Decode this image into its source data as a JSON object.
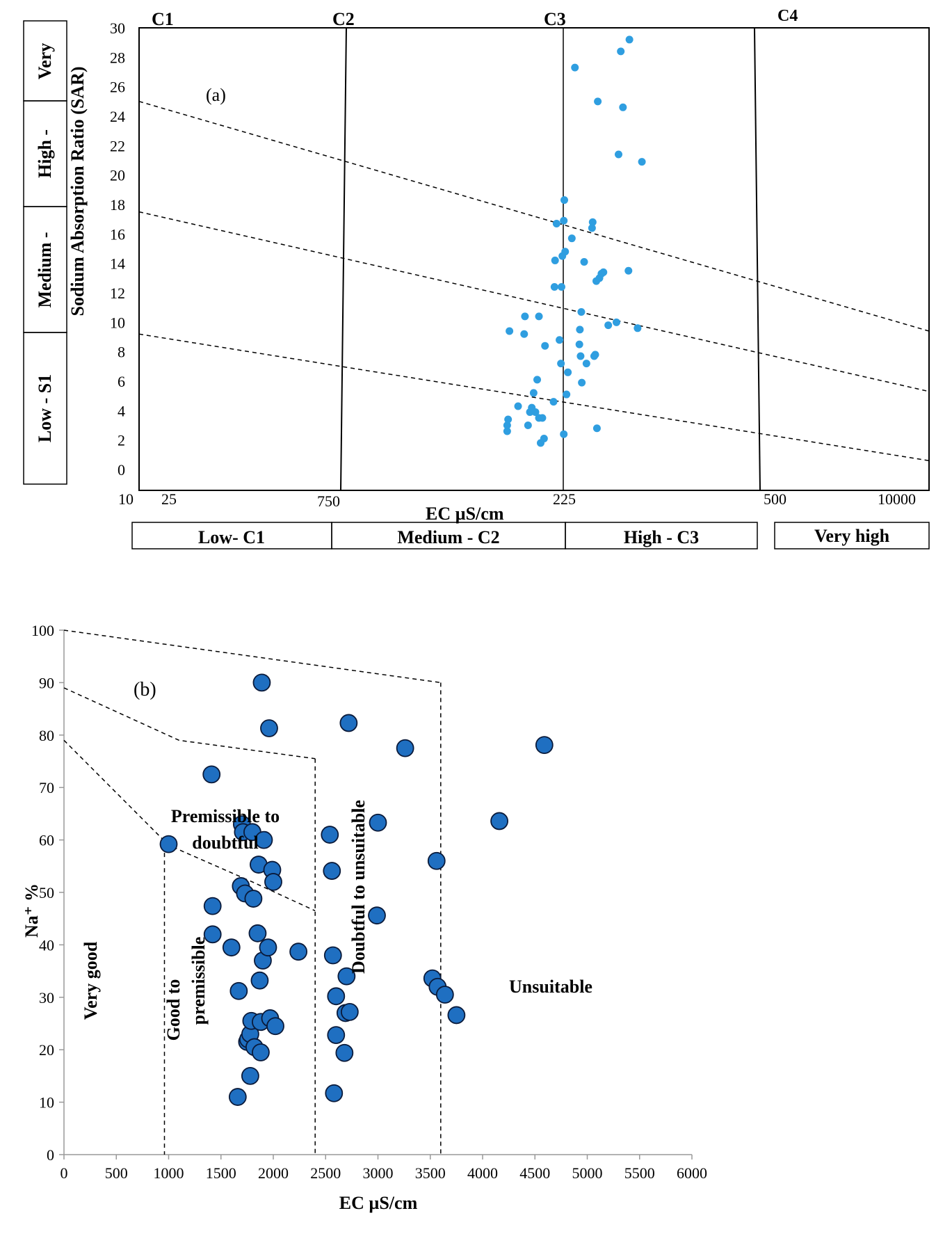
{
  "chart_data": [
    {
      "id": "a",
      "type": "scatter",
      "panel_label": "(a)",
      "xlabel": "EC µS/cm",
      "ylabel": "Sodium Absorption Ratio (SAR)",
      "ylim": [
        0,
        30
      ],
      "y_ticks": [
        "0",
        "2",
        "4",
        "6",
        "8",
        "10",
        "12",
        "14",
        "16",
        "18",
        "20",
        "22",
        "24",
        "26",
        "28",
        "30"
      ],
      "x_tick_labels": [
        "10",
        "25",
        "750",
        "225",
        "500",
        "10000"
      ],
      "class_lines": [
        "C1",
        "C2",
        "C3",
        "C4"
      ],
      "sodium_classes": [
        "Low - S1",
        "Medium -",
        "High -",
        "Very"
      ],
      "salinity_classes": [
        "Low- C1",
        "Medium - C2",
        "High - C3",
        "Very high"
      ],
      "marker_color": "#2f9ee0",
      "points": [
        [
          250,
          2.6
        ],
        [
          250,
          3.0
        ],
        [
          252,
          3.4
        ],
        [
          255,
          9.4
        ],
        [
          275,
          4.3
        ],
        [
          290,
          9.2
        ],
        [
          292,
          10.4
        ],
        [
          300,
          3.0
        ],
        [
          305,
          3.9
        ],
        [
          310,
          4.2
        ],
        [
          315,
          5.2
        ],
        [
          320,
          3.9
        ],
        [
          325,
          6.1
        ],
        [
          330,
          3.5
        ],
        [
          330,
          10.4
        ],
        [
          335,
          1.8
        ],
        [
          340,
          3.5
        ],
        [
          345,
          2.1
        ],
        [
          348,
          8.4
        ],
        [
          375,
          4.6
        ],
        [
          378,
          12.4
        ],
        [
          380,
          14.2
        ],
        [
          385,
          16.7
        ],
        [
          395,
          8.8
        ],
        [
          400,
          7.2
        ],
        [
          402,
          12.4
        ],
        [
          405,
          14.5
        ],
        [
          410,
          16.9
        ],
        [
          410,
          2.4
        ],
        [
          412,
          18.3
        ],
        [
          415,
          14.8
        ],
        [
          420,
          5.1
        ],
        [
          425,
          6.6
        ],
        [
          440,
          15.7
        ],
        [
          452,
          27.3
        ],
        [
          470,
          8.5
        ],
        [
          472,
          9.5
        ],
        [
          475,
          7.7
        ],
        [
          478,
          10.7
        ],
        [
          480,
          5.9
        ],
        [
          490,
          14.1
        ],
        [
          500,
          7.2
        ],
        [
          525,
          16.4
        ],
        [
          528,
          16.8
        ],
        [
          535,
          7.7
        ],
        [
          540,
          7.8
        ],
        [
          545,
          12.8
        ],
        [
          548,
          2.8
        ],
        [
          552,
          25.0
        ],
        [
          560,
          13.0
        ],
        [
          570,
          13.3
        ],
        [
          580,
          13.4
        ],
        [
          605,
          9.8
        ],
        [
          650,
          10.0
        ],
        [
          662,
          21.4
        ],
        [
          675,
          28.4
        ],
        [
          688,
          24.6
        ],
        [
          722,
          13.5
        ],
        [
          728,
          29.2
        ],
        [
          782,
          9.6
        ],
        [
          812,
          20.9
        ]
      ],
      "boundaries": [
        {
          "from": [
            10,
            9.2
          ],
          "to": [
            10000,
            0.6
          ]
        },
        {
          "from": [
            10,
            17.5
          ],
          "to": [
            10000,
            5.3
          ]
        },
        {
          "from": [
            10,
            25.0
          ],
          "to": [
            10000,
            9.4
          ]
        }
      ]
    },
    {
      "id": "b",
      "type": "scatter",
      "panel_label": "(b)",
      "xlabel": "EC µS/cm",
      "ylabel": "Na⁺ %",
      "xlim": [
        0,
        6000
      ],
      "ylim": [
        0,
        100
      ],
      "x_ticks": [
        "0",
        "500",
        "1000",
        "1500",
        "2000",
        "2500",
        "3000",
        "3500",
        "4000",
        "4500",
        "5000",
        "5500",
        "6000"
      ],
      "y_ticks": [
        "0",
        "10",
        "20",
        "30",
        "40",
        "50",
        "60",
        "70",
        "80",
        "90",
        "100"
      ],
      "marker_color": "#1f6fc1",
      "marker_edge": "#0a1a3a",
      "regions": {
        "very_good": "Very good",
        "good_to_permissible": [
          "Good to",
          "premissible"
        ],
        "permissible_to_doubtful": [
          "Premissible to",
          "doubtful"
        ],
        "doubtful_to_unsuitable": "Doubtful to unsuitable",
        "unsuitable": "Unsuitable"
      },
      "points": [
        [
          1000,
          59.2
        ],
        [
          1410,
          72.5
        ],
        [
          1420,
          47.4
        ],
        [
          1420,
          42.0
        ],
        [
          1600,
          39.5
        ],
        [
          1660,
          11.0
        ],
        [
          1670,
          31.2
        ],
        [
          1690,
          51.2
        ],
        [
          1700,
          63.0
        ],
        [
          1710,
          61.5
        ],
        [
          1730,
          49.8
        ],
        [
          1750,
          21.5
        ],
        [
          1760,
          22.0
        ],
        [
          1780,
          15.0
        ],
        [
          1780,
          23.0
        ],
        [
          1790,
          25.5
        ],
        [
          1800,
          61.5
        ],
        [
          1810,
          48.8
        ],
        [
          1820,
          20.5
        ],
        [
          1850,
          42.2
        ],
        [
          1860,
          55.3
        ],
        [
          1870,
          33.2
        ],
        [
          1880,
          19.5
        ],
        [
          1880,
          25.3
        ],
        [
          1890,
          90.0
        ],
        [
          1900,
          37.0
        ],
        [
          1910,
          60.0
        ],
        [
          1950,
          39.5
        ],
        [
          1960,
          81.3
        ],
        [
          1970,
          26.0
        ],
        [
          1990,
          54.3
        ],
        [
          2000,
          52.0
        ],
        [
          2020,
          24.5
        ],
        [
          2240,
          38.7
        ],
        [
          2540,
          61.0
        ],
        [
          2560,
          54.1
        ],
        [
          2570,
          38.0
        ],
        [
          2580,
          11.7
        ],
        [
          2600,
          30.2
        ],
        [
          2600,
          22.8
        ],
        [
          2680,
          19.4
        ],
        [
          2690,
          27.0
        ],
        [
          2700,
          34.0
        ],
        [
          2720,
          82.3
        ],
        [
          2730,
          27.2
        ],
        [
          2990,
          45.6
        ],
        [
          3000,
          63.3
        ],
        [
          3260,
          77.5
        ],
        [
          3520,
          33.6
        ],
        [
          3560,
          56.0
        ],
        [
          3570,
          32.0
        ],
        [
          3640,
          30.5
        ],
        [
          3750,
          26.6
        ],
        [
          4160,
          63.6
        ],
        [
          4590,
          78.1
        ]
      ],
      "boundaries": [
        {
          "points": [
            [
              0,
              100
            ],
            [
              3600,
              90
            ]
          ]
        },
        {
          "points": [
            [
              0,
              89
            ],
            [
              1100,
              79
            ],
            [
              2400,
              75.5
            ]
          ]
        },
        {
          "points": [
            [
              0,
              79
            ],
            [
              1000,
              59
            ],
            [
              1800,
              52
            ],
            [
              2400,
              46.5
            ]
          ]
        },
        {
          "points": [
            [
              960,
              59
            ],
            [
              960,
              0
            ]
          ]
        },
        {
          "points": [
            [
              2400,
              75.5
            ],
            [
              2400,
              0
            ]
          ]
        },
        {
          "points": [
            [
              3600,
              90
            ],
            [
              3600,
              0
            ]
          ]
        }
      ]
    }
  ]
}
